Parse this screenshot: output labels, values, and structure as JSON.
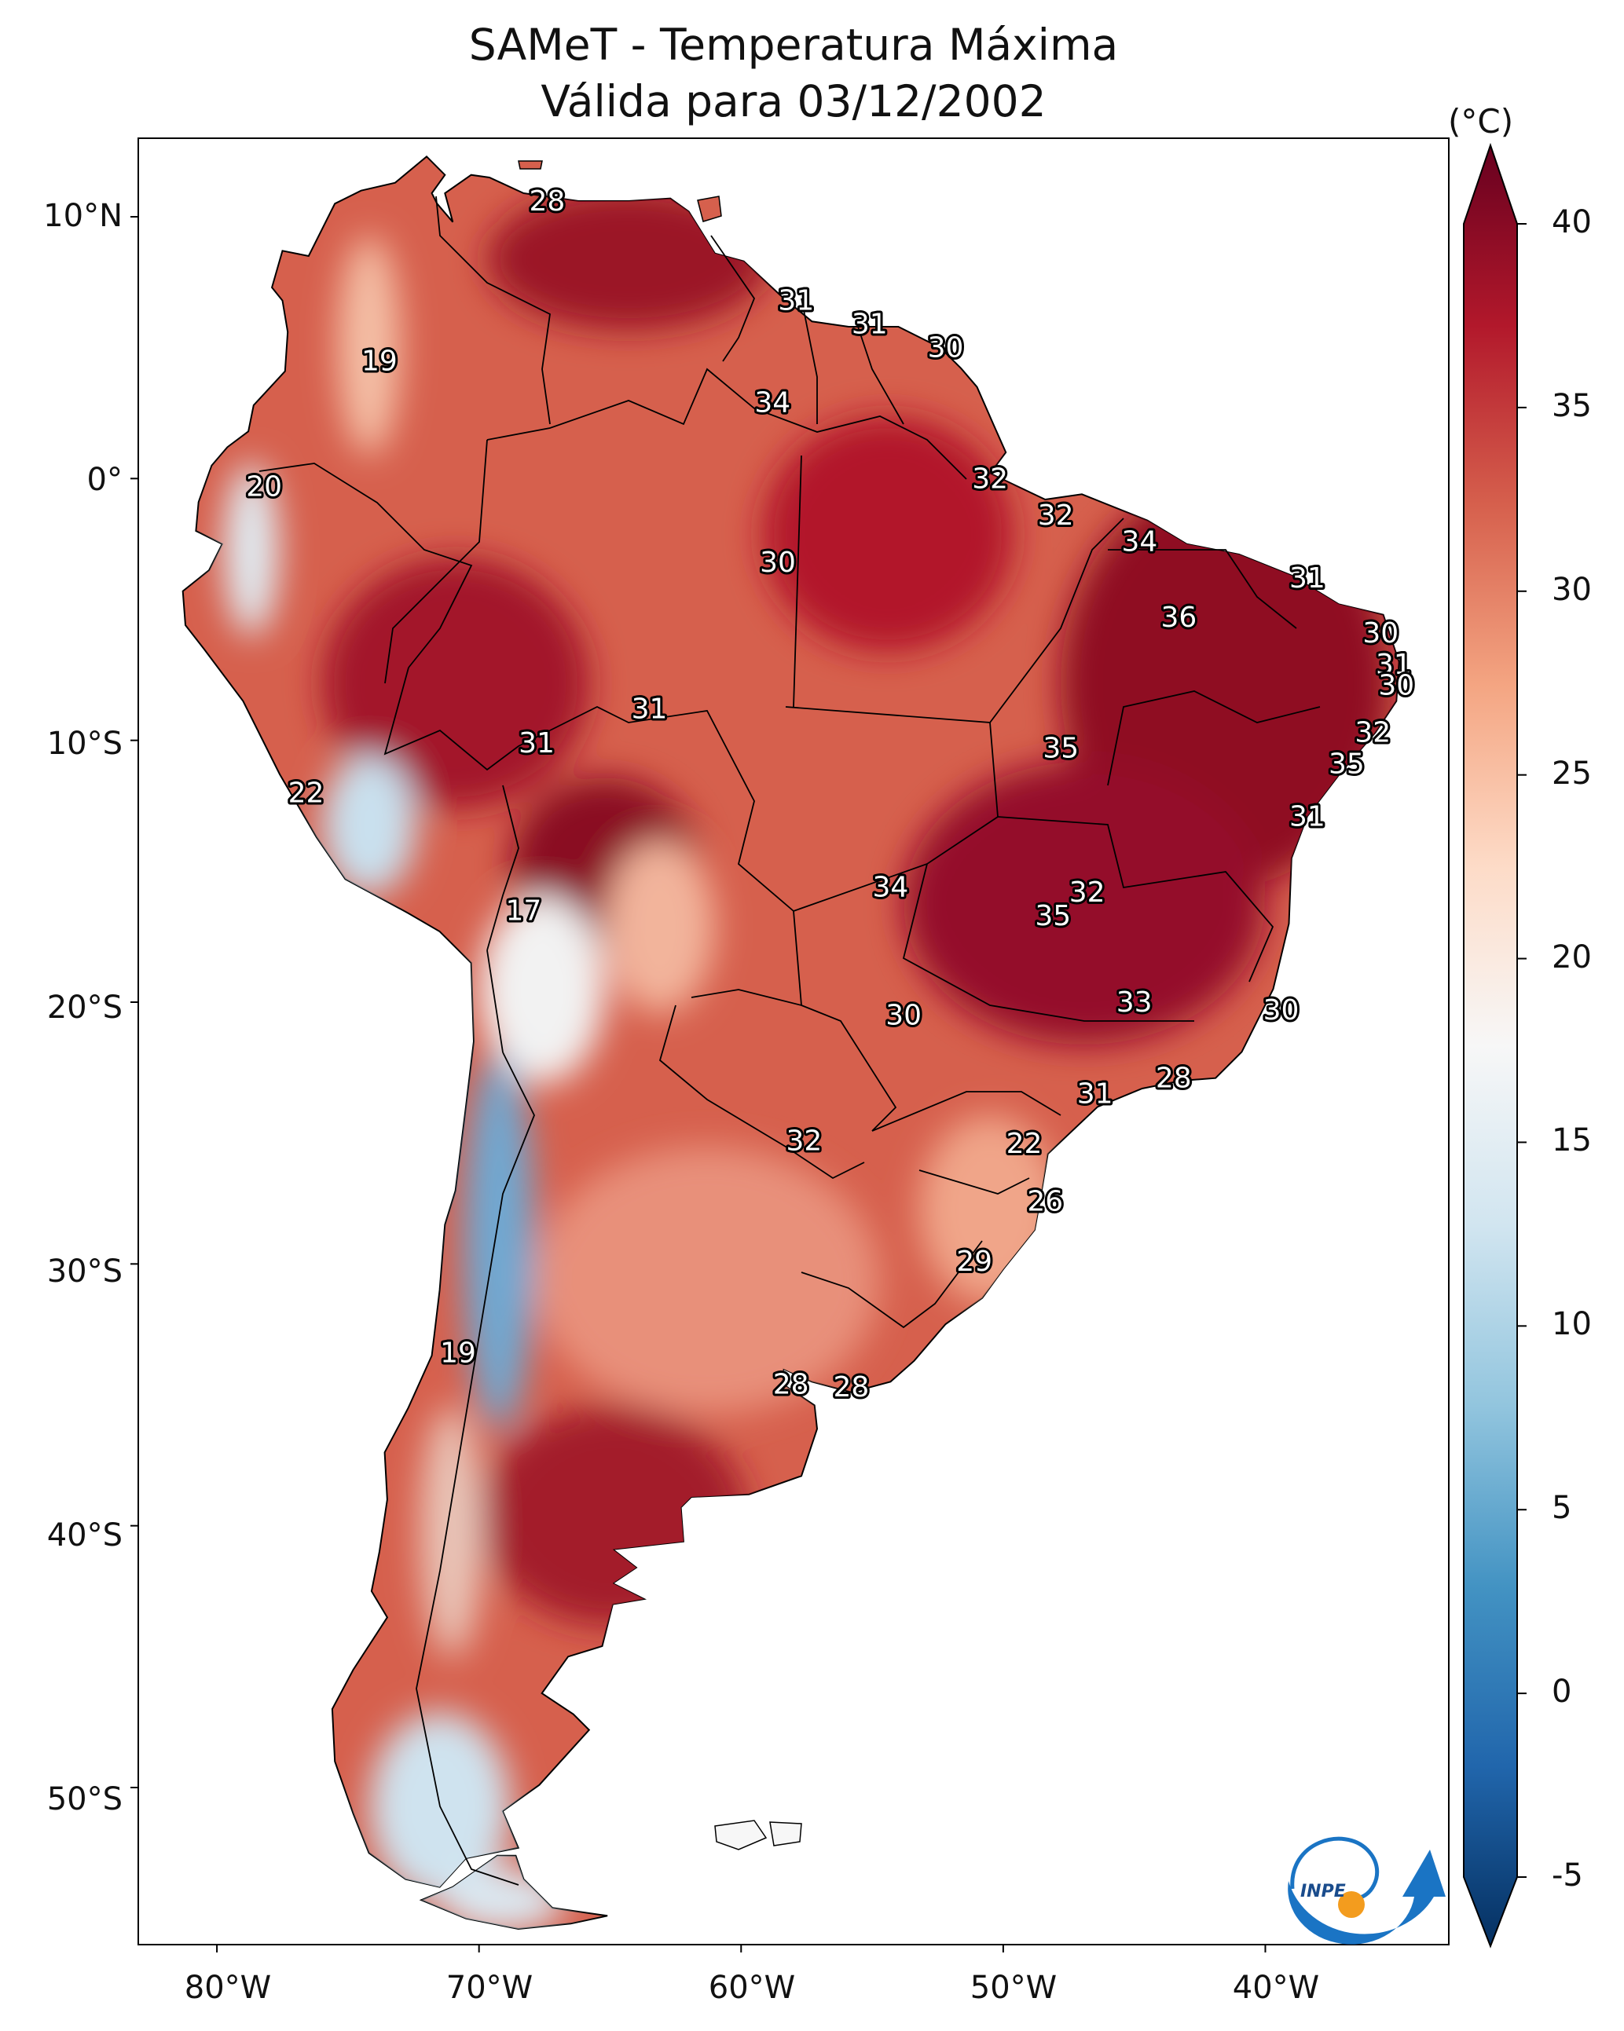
{
  "title": {
    "line1": "SAMeT - Temperatura Máxima",
    "line2": "Válida para 03/12/2002"
  },
  "axes": {
    "lat_labels": [
      "10°N",
      "0°",
      "10°S",
      "20°S",
      "30°S",
      "40°S",
      "50°S"
    ],
    "lon_labels": [
      "80°W",
      "70°W",
      "60°W",
      "50°W",
      "40°W"
    ]
  },
  "colorbar": {
    "unit_label": "(°C)",
    "ticks": [
      "40",
      "35",
      "30",
      "25",
      "20",
      "15",
      "10",
      "5",
      "0",
      "-5"
    ],
    "range": [
      -5,
      40
    ],
    "colors": [
      "#053061",
      "#2166ac",
      "#4393c3",
      "#92c5de",
      "#d1e5f0",
      "#f7f7f7",
      "#fddbc7",
      "#f4a582",
      "#d6604d",
      "#b2182b",
      "#67001f"
    ]
  },
  "logo": {
    "text": "INPE"
  },
  "chart_data": {
    "type": "contour-map",
    "variable": "Temperatura Máxima",
    "units": "°C",
    "date": "03/12/2002",
    "extent": {
      "lon": [
        -83,
        -33
      ],
      "lat": [
        -56,
        13
      ]
    },
    "station_labels": [
      {
        "lon": -67.4,
        "lat": 10.6,
        "value": "28"
      },
      {
        "lon": -73.8,
        "lat": 4.5,
        "value": "19"
      },
      {
        "lon": -78.2,
        "lat": -0.3,
        "value": "20"
      },
      {
        "lon": -57.9,
        "lat": 6.8,
        "value": "31"
      },
      {
        "lon": -55.1,
        "lat": 5.9,
        "value": "31"
      },
      {
        "lon": -52.2,
        "lat": 5.0,
        "value": "30"
      },
      {
        "lon": -58.8,
        "lat": 2.9,
        "value": "34"
      },
      {
        "lon": -50.5,
        "lat": 0.0,
        "value": "32"
      },
      {
        "lon": -48.0,
        "lat": -1.4,
        "value": "32"
      },
      {
        "lon": -58.6,
        "lat": -3.2,
        "value": "30"
      },
      {
        "lon": -44.8,
        "lat": -2.4,
        "value": "34"
      },
      {
        "lon": -38.4,
        "lat": -3.8,
        "value": "31"
      },
      {
        "lon": -43.3,
        "lat": -5.3,
        "value": "36"
      },
      {
        "lon": -35.6,
        "lat": -5.9,
        "value": "30"
      },
      {
        "lon": -35.1,
        "lat": -7.1,
        "value": "31"
      },
      {
        "lon": -35.0,
        "lat": -7.9,
        "value": "30"
      },
      {
        "lon": -35.9,
        "lat": -9.7,
        "value": "32"
      },
      {
        "lon": -36.9,
        "lat": -10.9,
        "value": "35"
      },
      {
        "lon": -63.5,
        "lat": -8.8,
        "value": "31"
      },
      {
        "lon": -67.8,
        "lat": -10.1,
        "value": "31"
      },
      {
        "lon": -47.8,
        "lat": -10.3,
        "value": "35"
      },
      {
        "lon": -76.6,
        "lat": -12.0,
        "value": "22"
      },
      {
        "lon": -38.4,
        "lat": -12.9,
        "value": "31"
      },
      {
        "lon": -54.3,
        "lat": -15.6,
        "value": "34"
      },
      {
        "lon": -46.8,
        "lat": -15.8,
        "value": "32"
      },
      {
        "lon": -48.1,
        "lat": -16.7,
        "value": "35"
      },
      {
        "lon": -68.3,
        "lat": -16.5,
        "value": "17"
      },
      {
        "lon": -45.0,
        "lat": -20.0,
        "value": "33"
      },
      {
        "lon": -39.4,
        "lat": -20.3,
        "value": "30"
      },
      {
        "lon": -53.8,
        "lat": -20.5,
        "value": "30"
      },
      {
        "lon": -43.5,
        "lat": -22.9,
        "value": "28"
      },
      {
        "lon": -46.5,
        "lat": -23.5,
        "value": "31"
      },
      {
        "lon": -57.6,
        "lat": -25.3,
        "value": "32"
      },
      {
        "lon": -49.2,
        "lat": -25.4,
        "value": "22"
      },
      {
        "lon": -48.4,
        "lat": -27.6,
        "value": "26"
      },
      {
        "lon": -51.1,
        "lat": -29.9,
        "value": "29"
      },
      {
        "lon": -70.8,
        "lat": -33.4,
        "value": "19"
      },
      {
        "lon": -58.1,
        "lat": -34.6,
        "value": "28"
      },
      {
        "lon": -55.8,
        "lat": -34.7,
        "value": "28"
      }
    ]
  }
}
